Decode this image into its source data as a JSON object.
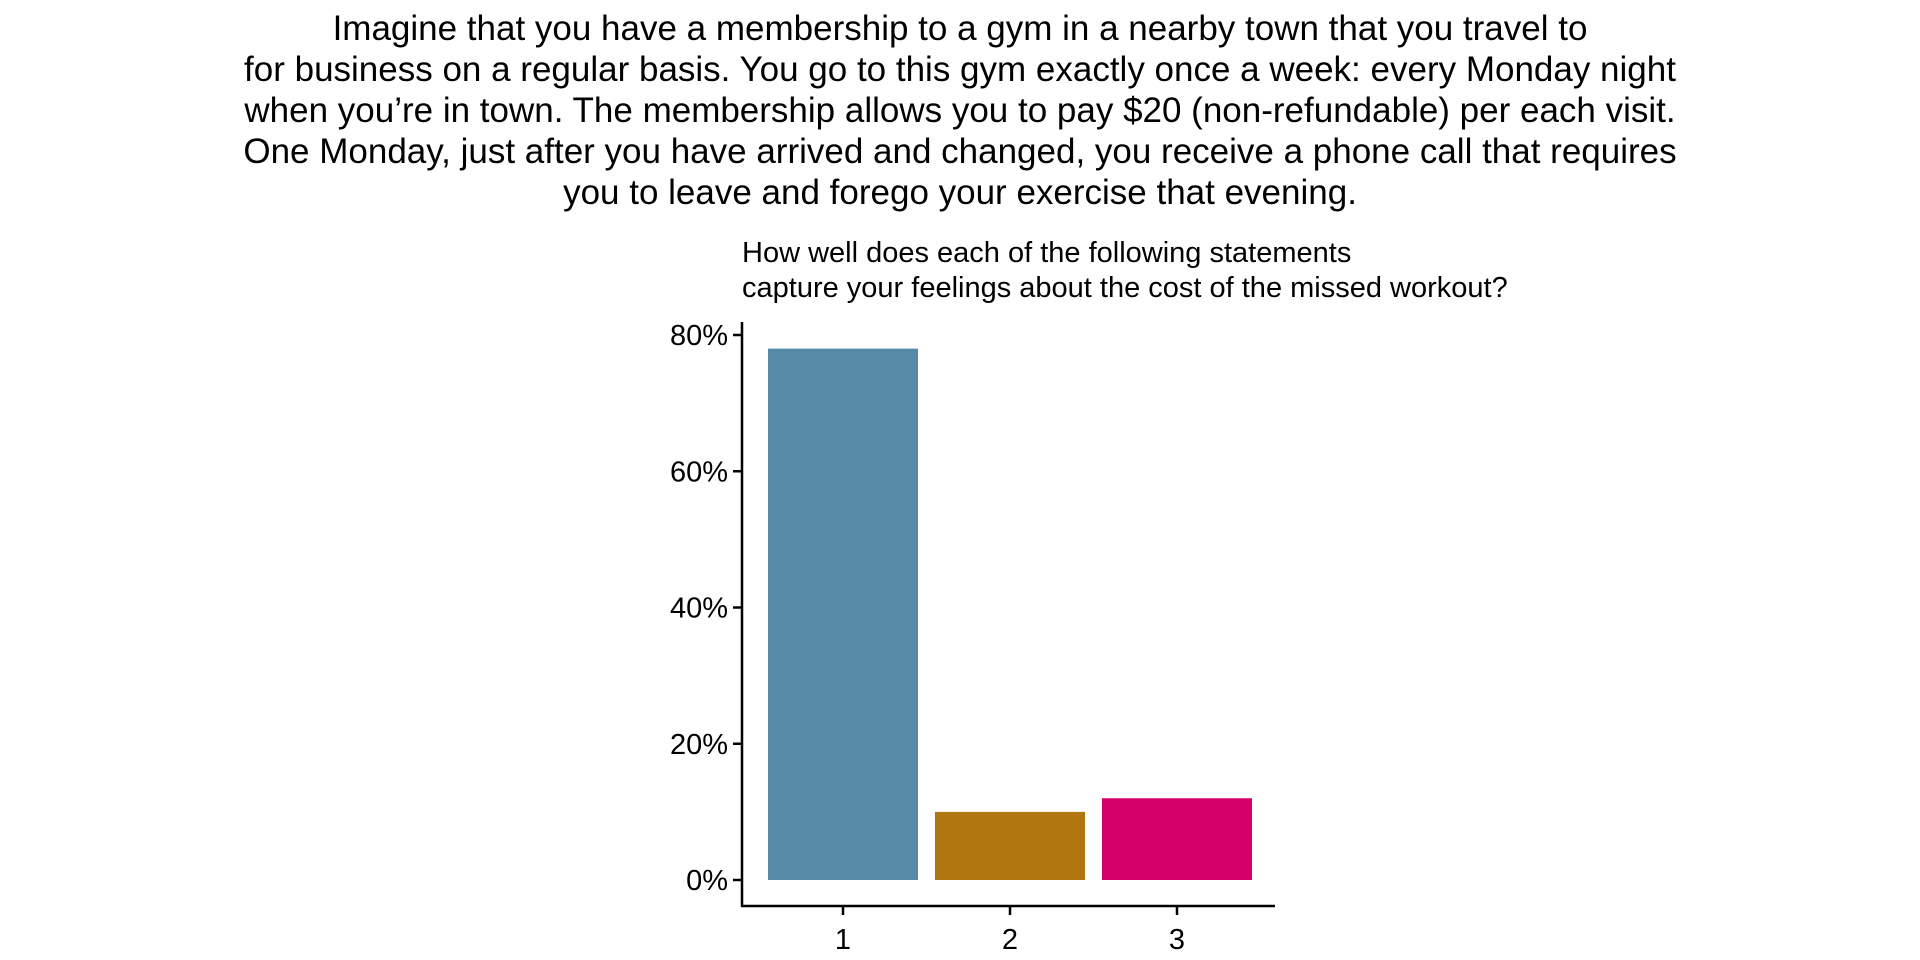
{
  "scenario": {
    "lines": [
      "Imagine that you have a membership to a gym in a nearby town that you travel to",
      "for business on a regular basis. You go to this gym exactly once a week: every Monday night",
      "when you’re in town. The membership allows you to pay $20 (non-refundable) per each visit.",
      "One Monday, just after you have arrived and changed, you receive a phone call that requires",
      "you to leave and forego your exercise that evening."
    ]
  },
  "chart_data": {
    "type": "bar",
    "subtitle_lines": [
      "How well does each of the following statements",
      "capture your feelings about the cost of the missed workout?"
    ],
    "categories": [
      "1",
      "2",
      "3"
    ],
    "values": [
      78,
      10,
      12
    ],
    "colors": [
      "#558ba7",
      "#b07610",
      "#d4006a"
    ],
    "ylim": [
      0,
      80
    ],
    "yticks": [
      0,
      20,
      40,
      60,
      80
    ],
    "ytick_labels": [
      "0%",
      "20%",
      "40%",
      "60%",
      "80%"
    ],
    "grid": false,
    "legend": false
  }
}
